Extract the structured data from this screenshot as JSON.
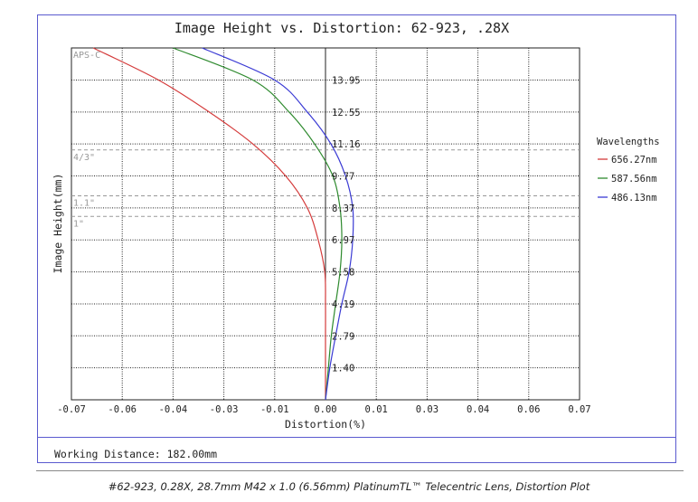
{
  "working_distance": "Working Distance: 182.00mm",
  "caption": "#62-923, 0.28X, 28.7mm M42 x 1.0 (6.56mm) PlatinumTL™ Telecentric Lens, Distortion Plot",
  "colors": {
    "frame": "#5a5acf",
    "grid": "#222222",
    "sensor_lines": "#999999"
  },
  "chart_data": {
    "type": "line",
    "title": "Image Height vs. Distortion: 62-923, .28X",
    "xlabel": "Distortion(%)",
    "ylabel": "Image Height(mm)",
    "xlim": [
      -0.07,
      0.07
    ],
    "ylim": [
      0,
      15.35
    ],
    "x_tick_labels": [
      "-0.07",
      "-0.06",
      "-0.04",
      "-0.03",
      "-0.01",
      "0.00",
      "0.01",
      "0.03",
      "0.04",
      "0.06",
      "0.07"
    ],
    "x_ticks": [
      -0.07,
      -0.056,
      -0.042,
      -0.028,
      -0.014,
      0.0,
      0.014,
      0.028,
      0.042,
      0.056,
      0.07
    ],
    "y_tick_labels": [
      "1.40",
      "2.79",
      "4.19",
      "5.58",
      "6.97",
      "8.37",
      "9.77",
      "11.16",
      "12.55",
      "13.95"
    ],
    "y_ticks": [
      1.395,
      2.79,
      4.185,
      5.58,
      6.975,
      8.37,
      9.765,
      11.16,
      12.555,
      13.95
    ],
    "grid": true,
    "legend": {
      "title": "Wavelengths",
      "position": "right"
    },
    "sensor_markers": [
      {
        "label": "APS-C",
        "y": 15.35
      },
      {
        "label": "4/3\"",
        "y": 10.9
      },
      {
        "label": "1.1\"",
        "y": 8.9
      },
      {
        "label": "1\"",
        "y": 8.0
      }
    ],
    "series": [
      {
        "name": "656.27nm",
        "color": "#d43a3a",
        "points": [
          [
            0,
            0
          ],
          [
            0,
            1.4
          ],
          [
            0,
            2.79
          ],
          [
            0,
            4.19
          ],
          [
            -0.0002,
            5.58
          ],
          [
            -0.002,
            6.97
          ],
          [
            -0.005,
            8.37
          ],
          [
            -0.011,
            9.77
          ],
          [
            -0.02,
            11.16
          ],
          [
            -0.032,
            12.55
          ],
          [
            -0.046,
            13.95
          ],
          [
            -0.064,
            15.35
          ]
        ]
      },
      {
        "name": "587.56nm",
        "color": "#2e8a2e",
        "points": [
          [
            0,
            0
          ],
          [
            0.0008,
            1.4
          ],
          [
            0.0016,
            2.79
          ],
          [
            0.0028,
            4.19
          ],
          [
            0.004,
            5.58
          ],
          [
            0.0045,
            6.97
          ],
          [
            0.004,
            8.37
          ],
          [
            0.002,
            9.77
          ],
          [
            -0.003,
            11.16
          ],
          [
            -0.01,
            12.55
          ],
          [
            -0.02,
            13.95
          ],
          [
            -0.042,
            15.35
          ]
        ]
      },
      {
        "name": "486.13nm",
        "color": "#3a3ad4",
        "points": [
          [
            0,
            0
          ],
          [
            0.0012,
            1.4
          ],
          [
            0.0028,
            2.79
          ],
          [
            0.0045,
            4.19
          ],
          [
            0.0065,
            5.58
          ],
          [
            0.0075,
            6.97
          ],
          [
            0.0075,
            8.37
          ],
          [
            0.0055,
            9.77
          ],
          [
            0.0015,
            11.16
          ],
          [
            -0.005,
            12.55
          ],
          [
            -0.014,
            13.95
          ],
          [
            -0.034,
            15.35
          ]
        ]
      }
    ]
  }
}
